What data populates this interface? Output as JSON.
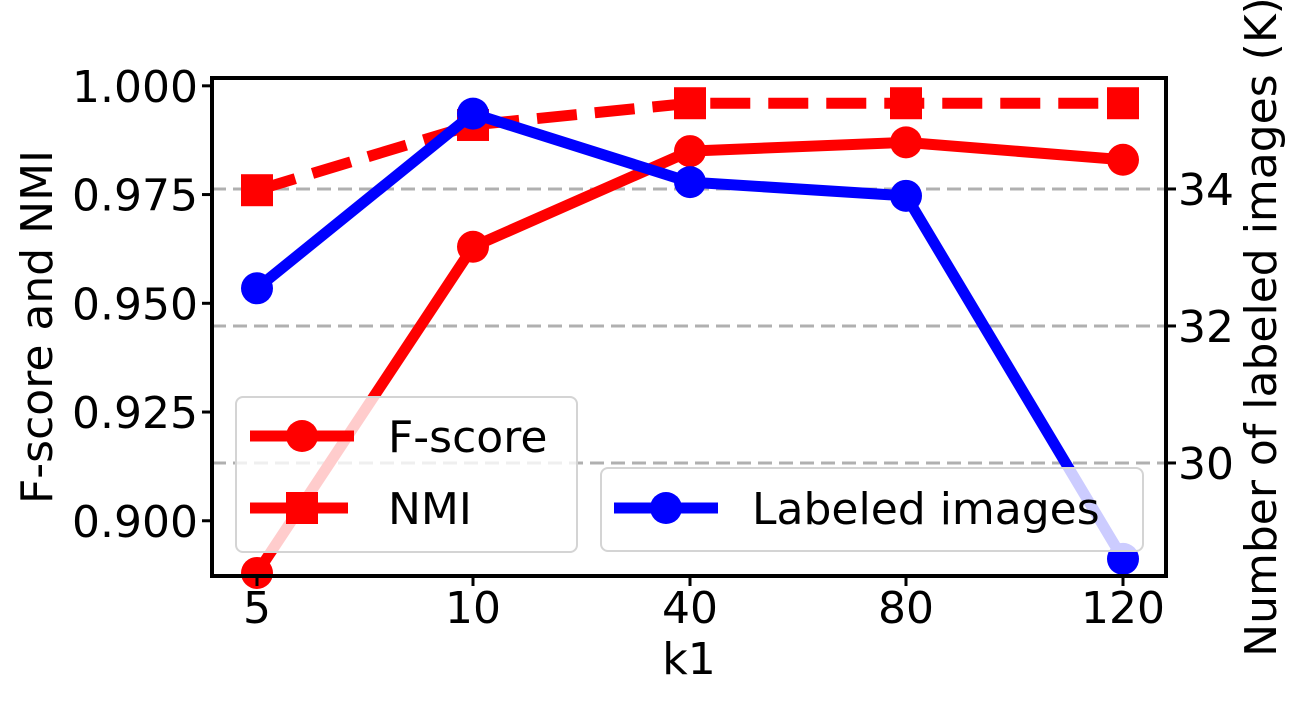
{
  "chart_data": {
    "type": "line",
    "categories": [
      "5",
      "10",
      "40",
      "80",
      "120"
    ],
    "xlabel": "k1",
    "ylabel_left": "F-score and NMI",
    "ylabel_right": "Number of labeled images (K)",
    "ylim_left": [
      0.8873,
      1.0018
    ],
    "yticks_left": [
      "0.900",
      "0.925",
      "0.950",
      "0.975",
      "1.000"
    ],
    "ylim_right": [
      28.35,
      35.62
    ],
    "yticks_right": [
      "30",
      "32",
      "34"
    ],
    "grid": "right-axis dashed horizontal lines",
    "series": [
      {
        "name": "F-score",
        "axis": "left",
        "color": "#ff0000",
        "marker": "circle",
        "linestyle": "solid",
        "values": [
          0.888,
          0.963,
          0.985,
          0.987,
          0.983
        ]
      },
      {
        "name": "NMI",
        "axis": "left",
        "color": "#ff0000",
        "marker": "square",
        "linestyle": "dashed",
        "values": [
          0.976,
          0.991,
          0.996,
          0.996,
          0.996
        ]
      },
      {
        "name": "Labeled images",
        "axis": "right",
        "color": "#0000ff",
        "marker": "circle",
        "linestyle": "solid",
        "values": [
          32.55,
          35.1,
          34.1,
          33.9,
          28.6
        ]
      }
    ],
    "legends": [
      {
        "placement": "lower-left",
        "entries": [
          "F-score",
          "NMI"
        ]
      },
      {
        "placement": "lower-right",
        "entries": [
          "Labeled images"
        ]
      }
    ]
  }
}
